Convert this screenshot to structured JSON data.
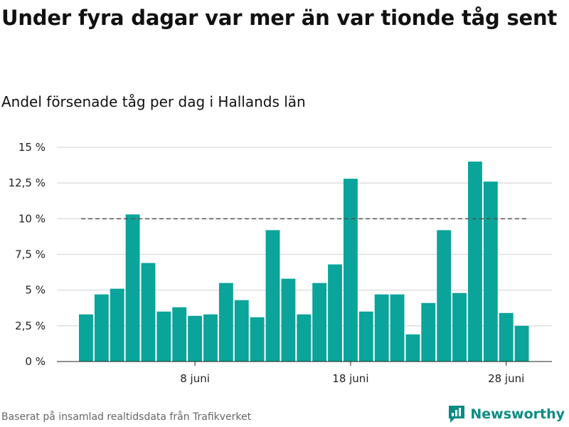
{
  "title": "Under fyra dagar var mer än var tionde tåg sent",
  "subtitle": "Andel försenade tåg per dag i Hallands län",
  "source": "Baserat på insamlad realtidsdata från Trafikverket",
  "brand": {
    "name": "Newsworthy",
    "icon": "newsworthy-logo-icon",
    "color": "#0a8c83"
  },
  "chart_data": {
    "type": "bar",
    "title": "Under fyra dagar var mer än var tionde tåg sent",
    "subtitle": "Andel försenade tåg per dag i Hallands län",
    "x": [
      "2019-06-01",
      "2019-06-02",
      "2019-06-03",
      "2019-06-04",
      "2019-06-05",
      "2019-06-06",
      "2019-06-07",
      "2019-06-08",
      "2019-06-09",
      "2019-06-10",
      "2019-06-11",
      "2019-06-12",
      "2019-06-13",
      "2019-06-14",
      "2019-06-15",
      "2019-06-16",
      "2019-06-17",
      "2019-06-18",
      "2019-06-19",
      "2019-06-20",
      "2019-06-21",
      "2019-06-22",
      "2019-06-23",
      "2019-06-24",
      "2019-06-25",
      "2019-06-26",
      "2019-06-27",
      "2019-06-28",
      "2019-06-29"
    ],
    "values": [
      3.3,
      4.7,
      5.1,
      10.3,
      6.9,
      3.5,
      3.8,
      3.2,
      3.3,
      5.5,
      4.3,
      3.1,
      9.2,
      5.8,
      3.3,
      5.5,
      6.8,
      12.8,
      3.5,
      4.7,
      4.7,
      1.9,
      4.1,
      9.2,
      4.8,
      14.0,
      12.6,
      3.4,
      2.5
    ],
    "ylim": [
      0,
      15
    ],
    "y_ticks": [
      0,
      2.5,
      5,
      7.5,
      10,
      12.5,
      15
    ],
    "y_tick_labels": [
      "0 %",
      "2,5 %",
      "5 %",
      "7,5 %",
      "10 %",
      "12,5 %",
      "15 %"
    ],
    "x_ticks": [
      "2019-06-08",
      "2019-06-18",
      "2019-06-28"
    ],
    "x_tick_labels": [
      "8 juni",
      "18 juni",
      "28 juni"
    ],
    "reference_line": 10,
    "bar_color": "#0aa49a",
    "grid": true,
    "unit": "%"
  }
}
